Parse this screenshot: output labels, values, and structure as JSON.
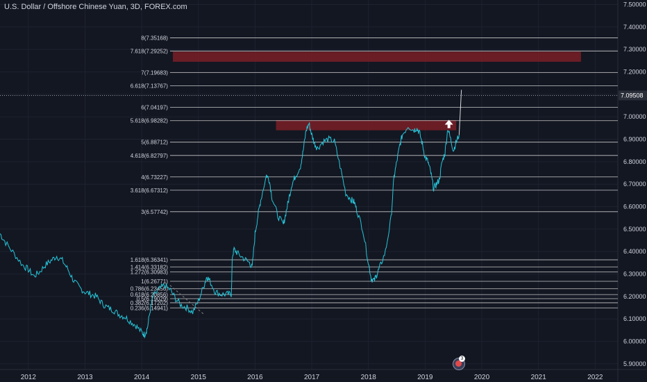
{
  "header": {
    "title": "U.S. Dollar / Offshore Chinese Yuan, 3D, FOREX.com"
  },
  "badge": {
    "count": "3",
    "name": "notification-badge"
  },
  "colors": {
    "background": "#131722",
    "grid": "#1e2230",
    "price_line": "#26c6da",
    "fib_line": "#c8c8c8",
    "zone_fill": "#7a1f26",
    "text": "#d1d4dc",
    "arrow": "#ffffff"
  },
  "chart_data": {
    "type": "line",
    "x_axis": {
      "ticks": [
        "2012",
        "2013",
        "2014",
        "2015",
        "2016",
        "2017",
        "2018",
        "2019",
        "2020",
        "2021",
        "2022"
      ],
      "xlim": [
        2011.5,
        2022.4
      ]
    },
    "y_axis": {
      "ticks": [
        "5.90000",
        "6.00000",
        "6.10000",
        "6.20000",
        "6.30000",
        "6.40000",
        "6.50000",
        "6.60000",
        "6.70000",
        "6.80000",
        "6.90000",
        "7.00000",
        "7.10000",
        "7.20000",
        "7.30000",
        "7.40000",
        "7.50000"
      ],
      "ylim": [
        5.875,
        7.52
      ]
    },
    "current_price": {
      "value": 7.09508,
      "label": "7.09508"
    },
    "fib_levels": [
      {
        "ratio": "8",
        "price": 7.35168,
        "label": "8(7.35168)"
      },
      {
        "ratio": "7.618",
        "price": 7.29252,
        "label": "7.618(7.29252)"
      },
      {
        "ratio": "7",
        "price": 7.19683,
        "label": "7(7.19683)"
      },
      {
        "ratio": "6.618",
        "price": 7.13767,
        "label": "6.618(7.13767)"
      },
      {
        "ratio": "6",
        "price": 7.04197,
        "label": "6(7.04197)"
      },
      {
        "ratio": "5.618",
        "price": 6.98282,
        "label": "5.618(6.98282)"
      },
      {
        "ratio": "5",
        "price": 6.88712,
        "label": "5(6.88712)"
      },
      {
        "ratio": "4.618",
        "price": 6.82797,
        "label": "4.618(6.82797)"
      },
      {
        "ratio": "4",
        "price": 6.73227,
        "label": "4(6.73227)"
      },
      {
        "ratio": "3.618",
        "price": 6.67312,
        "label": "3.618(6.67312)"
      },
      {
        "ratio": "3",
        "price": 6.57742,
        "label": "3(6.57742)"
      },
      {
        "ratio": "1.618",
        "price": 6.36341,
        "label": "1.618(6.36341)"
      },
      {
        "ratio": "1.414",
        "price": 6.33182,
        "label": "1.414(6.33182)"
      },
      {
        "ratio": "1.272",
        "price": 6.30983,
        "label": "1.272(6.30983)"
      },
      {
        "ratio": "1",
        "price": 6.26771,
        "label": "1(6.26771)"
      },
      {
        "ratio": "0.786",
        "price": 6.23456,
        "label": "0.786(6.23456)"
      },
      {
        "ratio": "0.618",
        "price": 6.20856,
        "label": "0.618(6.20856)"
      },
      {
        "ratio": "0.5",
        "price": 6.19029,
        "label": "0.5(6.19029)"
      },
      {
        "ratio": "0.382",
        "price": 6.17202,
        "label": "0.382(6.17202)"
      },
      {
        "ratio": "0.236",
        "price": 6.14941,
        "label": "0.236(6.14941)"
      }
    ],
    "zones": [
      {
        "x0": 2014.55,
        "x1": 2021.75,
        "y0": 7.245,
        "y1": 7.29
      },
      {
        "x0": 2016.37,
        "x1": 2019.55,
        "y0": 6.94,
        "y1": 6.985
      }
    ],
    "arrow": {
      "x": 2019.42,
      "y": 6.965
    },
    "dashed_trend": {
      "x0": 2014.5,
      "y0": 6.25,
      "x1": 2015.1,
      "y1": 6.12
    },
    "series": [
      {
        "x": [
          2011.5,
          2011.6,
          2011.75,
          2011.9,
          2012.0,
          2012.1,
          2012.2,
          2012.3,
          2012.4,
          2012.5,
          2012.6,
          2012.7,
          2012.8,
          2012.9,
          2013.0,
          2013.1,
          2013.2,
          2013.3,
          2013.4,
          2013.5,
          2013.6,
          2013.7,
          2013.8,
          2013.9,
          2014.0,
          2014.05,
          2014.1,
          2014.15,
          2014.2,
          2014.3,
          2014.4,
          2014.5,
          2014.6,
          2014.7,
          2014.8,
          2014.9,
          2015.0,
          2015.1,
          2015.15,
          2015.2,
          2015.3,
          2015.4,
          2015.5,
          2015.58,
          2015.6,
          2015.63,
          2015.7,
          2015.8,
          2015.9,
          2015.95,
          2016.0,
          2016.05,
          2016.1,
          2016.2,
          2016.25,
          2016.3,
          2016.4,
          2016.5,
          2016.55,
          2016.6,
          2016.65,
          2016.7,
          2016.8,
          2016.85,
          2016.9,
          2016.95,
          2017.0,
          2017.05,
          2017.1,
          2017.2,
          2017.3,
          2017.4,
          2017.5,
          2017.6,
          2017.7,
          2017.75,
          2017.8,
          2017.9,
          2018.0,
          2018.05,
          2018.1,
          2018.15,
          2018.2,
          2018.3,
          2018.4,
          2018.45,
          2018.5,
          2018.55,
          2018.6,
          2018.7,
          2018.8,
          2018.85,
          2018.9,
          2018.95,
          2019.0,
          2019.05,
          2019.1,
          2019.15,
          2019.2,
          2019.25,
          2019.3,
          2019.35,
          2019.4,
          2019.45,
          2019.5,
          2019.55,
          2019.6
        ],
        "y": [
          6.48,
          6.44,
          6.39,
          6.34,
          6.32,
          6.29,
          6.31,
          6.34,
          6.36,
          6.38,
          6.36,
          6.32,
          6.27,
          6.24,
          6.22,
          6.21,
          6.2,
          6.17,
          6.15,
          6.14,
          6.12,
          6.11,
          6.09,
          6.07,
          6.04,
          6.03,
          6.06,
          6.14,
          6.2,
          6.23,
          6.25,
          6.23,
          6.19,
          6.16,
          6.15,
          6.13,
          6.18,
          6.25,
          6.29,
          6.27,
          6.22,
          6.21,
          6.21,
          6.21,
          6.38,
          6.41,
          6.39,
          6.37,
          6.35,
          6.33,
          6.48,
          6.56,
          6.63,
          6.74,
          6.72,
          6.64,
          6.56,
          6.52,
          6.58,
          6.64,
          6.7,
          6.73,
          6.78,
          6.85,
          6.94,
          6.97,
          6.92,
          6.88,
          6.86,
          6.89,
          6.9,
          6.89,
          6.78,
          6.66,
          6.63,
          6.62,
          6.58,
          6.5,
          6.35,
          6.28,
          6.27,
          6.3,
          6.33,
          6.4,
          6.55,
          6.73,
          6.8,
          6.87,
          6.92,
          6.96,
          6.94,
          6.95,
          6.93,
          6.88,
          6.82,
          6.8,
          6.75,
          6.68,
          6.7,
          6.72,
          6.8,
          6.84,
          6.95,
          6.9,
          6.85,
          6.89,
          6.92
        ]
      }
    ]
  }
}
